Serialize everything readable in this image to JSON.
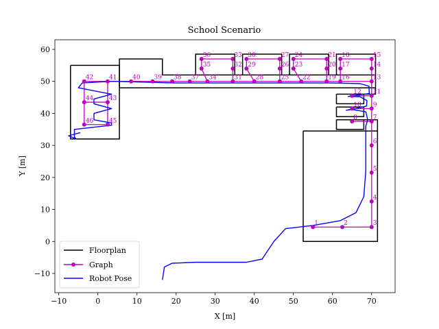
{
  "chart_data": {
    "type": "line",
    "title": "School Scenario",
    "xlabel": "X [m]",
    "ylabel": "Y [m]",
    "xlim": [
      -11,
      76
    ],
    "ylim": [
      -16,
      63
    ],
    "xticks": [
      -10,
      0,
      10,
      20,
      30,
      40,
      50,
      60,
      70
    ],
    "yticks": [
      -10,
      0,
      10,
      20,
      30,
      40,
      50,
      60
    ],
    "xtick_labels": [
      "−10",
      "0",
      "10",
      "20",
      "30",
      "40",
      "50",
      "60",
      "70"
    ],
    "ytick_labels": [
      "−10",
      "0",
      "10",
      "20",
      "30",
      "40",
      "50",
      "60"
    ],
    "grid": false,
    "legend_position": "lower-left",
    "colors": {
      "floorplan": "#000000",
      "graph": "#bf00bf",
      "robot": "#0000ff"
    },
    "legend": [
      "Floorplan",
      "Graph",
      "Robot Pose"
    ],
    "floorplan": [
      [
        [
          5.5,
          48
        ],
        [
          5.5,
          57
        ],
        [
          16.5,
          57
        ],
        [
          16.5,
          52
        ],
        [
          71,
          52
        ],
        [
          71,
          48
        ],
        [
          5.5,
          48
        ]
      ],
      [
        [
          -7,
          55
        ],
        [
          5.5,
          55
        ],
        [
          5.5,
          32
        ],
        [
          -7,
          32
        ],
        [
          -7,
          55
        ]
      ],
      [
        [
          25,
          52
        ],
        [
          25,
          58.5
        ],
        [
          35,
          58.5
        ],
        [
          35,
          52
        ]
      ],
      [
        [
          37,
          52
        ],
        [
          37,
          58.5
        ],
        [
          47,
          58.5
        ],
        [
          47,
          52
        ]
      ],
      [
        [
          49,
          52
        ],
        [
          49,
          58.5
        ],
        [
          59,
          58.5
        ],
        [
          59,
          52
        ]
      ],
      [
        [
          61,
          52
        ],
        [
          61,
          58.5
        ],
        [
          71,
          58.5
        ],
        [
          71,
          52
        ]
      ],
      [
        [
          61,
          46
        ],
        [
          68,
          46
        ],
        [
          68,
          43
        ],
        [
          61,
          43
        ],
        [
          61,
          46
        ]
      ],
      [
        [
          61,
          42
        ],
        [
          68,
          42
        ],
        [
          68,
          39
        ],
        [
          61,
          39
        ],
        [
          61,
          42
        ]
      ],
      [
        [
          61,
          38
        ],
        [
          68,
          38
        ],
        [
          68,
          35
        ],
        [
          61,
          35
        ],
        [
          61,
          38
        ]
      ],
      [
        [
          52.5,
          34.5
        ],
        [
          71.5,
          34.5
        ],
        [
          71.5,
          0
        ],
        [
          52.5,
          0
        ],
        [
          52.5,
          34.5
        ]
      ],
      [
        [
          68,
          38
        ],
        [
          71.5,
          38
        ],
        [
          71.5,
          34.5
        ]
      ],
      [
        [
          68,
          46
        ],
        [
          71,
          46
        ],
        [
          71,
          48
        ]
      ]
    ],
    "graph_nodes": [
      {
        "id": "1",
        "x": 55,
        "y": 4.5
      },
      {
        "id": "2",
        "x": 62.5,
        "y": 4.5
      },
      {
        "id": "3",
        "x": 70,
        "y": 4.5
      },
      {
        "id": "4",
        "x": 70,
        "y": 12.5
      },
      {
        "id": "5",
        "x": 70,
        "y": 21.5
      },
      {
        "id": "6",
        "x": 70,
        "y": 30
      },
      {
        "id": "7",
        "x": 70,
        "y": 37.5
      },
      {
        "id": "8",
        "x": 65,
        "y": 37.5
      },
      {
        "id": "9",
        "x": 70,
        "y": 41.5
      },
      {
        "id": "10",
        "x": 65,
        "y": 41.5
      },
      {
        "id": "11",
        "x": 70,
        "y": 45.5
      },
      {
        "id": "12",
        "x": 65,
        "y": 45.5
      },
      {
        "id": "13",
        "x": 70,
        "y": 50
      },
      {
        "id": "14",
        "x": 70,
        "y": 54
      },
      {
        "id": "15",
        "x": 70,
        "y": 57
      },
      {
        "id": "16",
        "x": 62,
        "y": 50
      },
      {
        "id": "17",
        "x": 62,
        "y": 54
      },
      {
        "id": "18",
        "x": 62,
        "y": 57
      },
      {
        "id": "19",
        "x": 58.5,
        "y": 50
      },
      {
        "id": "20",
        "x": 58.5,
        "y": 54
      },
      {
        "id": "21",
        "x": 58.5,
        "y": 57
      },
      {
        "id": "22",
        "x": 52,
        "y": 50
      },
      {
        "id": "23",
        "x": 50,
        "y": 54
      },
      {
        "id": "24",
        "x": 50,
        "y": 57
      },
      {
        "id": "25",
        "x": 46.5,
        "y": 50
      },
      {
        "id": "26",
        "x": 46.5,
        "y": 54
      },
      {
        "id": "27",
        "x": 46.5,
        "y": 57
      },
      {
        "id": "28",
        "x": 40,
        "y": 50
      },
      {
        "id": "29",
        "x": 38,
        "y": 54
      },
      {
        "id": "30",
        "x": 38,
        "y": 57
      },
      {
        "id": "31",
        "x": 34.5,
        "y": 50
      },
      {
        "id": "32",
        "x": 34.5,
        "y": 54
      },
      {
        "id": "33",
        "x": 34.5,
        "y": 57
      },
      {
        "id": "34",
        "x": 28,
        "y": 50
      },
      {
        "id": "35",
        "x": 26.5,
        "y": 54
      },
      {
        "id": "36",
        "x": 26.5,
        "y": 57
      },
      {
        "id": "37",
        "x": 23.5,
        "y": 50
      },
      {
        "id": "38",
        "x": 19,
        "y": 50
      },
      {
        "id": "39",
        "x": 14,
        "y": 50
      },
      {
        "id": "40",
        "x": 8.5,
        "y": 50
      },
      {
        "id": "41",
        "x": 2.5,
        "y": 50
      },
      {
        "id": "42",
        "x": -3.5,
        "y": 50
      },
      {
        "id": "43",
        "x": 2.5,
        "y": 43.5
      },
      {
        "id": "44",
        "x": -3.5,
        "y": 43.5
      },
      {
        "id": "45",
        "x": 2.5,
        "y": 36.5
      },
      {
        "id": "46",
        "x": -3.5,
        "y": 36.5
      }
    ],
    "graph_edges": [
      [
        "1",
        "2"
      ],
      [
        "2",
        "3"
      ],
      [
        "3",
        "4"
      ],
      [
        "4",
        "5"
      ],
      [
        "5",
        "6"
      ],
      [
        "6",
        "7"
      ],
      [
        "7",
        "8"
      ],
      [
        "7",
        "9"
      ],
      [
        "9",
        "10"
      ],
      [
        "9",
        "11"
      ],
      [
        "11",
        "12"
      ],
      [
        "11",
        "13"
      ],
      [
        "13",
        "14"
      ],
      [
        "14",
        "15"
      ],
      [
        "15",
        "18"
      ],
      [
        "18",
        "17"
      ],
      [
        "17",
        "16"
      ],
      [
        "13",
        "16"
      ],
      [
        "16",
        "19"
      ],
      [
        "19",
        "20"
      ],
      [
        "20",
        "21"
      ],
      [
        "21",
        "24"
      ],
      [
        "24",
        "23"
      ],
      [
        "23",
        "22"
      ],
      [
        "19",
        "22"
      ],
      [
        "22",
        "25"
      ],
      [
        "25",
        "26"
      ],
      [
        "26",
        "27"
      ],
      [
        "27",
        "30"
      ],
      [
        "30",
        "29"
      ],
      [
        "29",
        "28"
      ],
      [
        "25",
        "28"
      ],
      [
        "28",
        "31"
      ],
      [
        "31",
        "32"
      ],
      [
        "32",
        "33"
      ],
      [
        "33",
        "36"
      ],
      [
        "36",
        "35"
      ],
      [
        "35",
        "34"
      ],
      [
        "31",
        "34"
      ],
      [
        "34",
        "37"
      ],
      [
        "37",
        "38"
      ],
      [
        "38",
        "39"
      ],
      [
        "39",
        "40"
      ],
      [
        "40",
        "41"
      ],
      [
        "41",
        "42"
      ],
      [
        "42",
        "44"
      ],
      [
        "44",
        "46"
      ],
      [
        "46",
        "45"
      ],
      [
        "45",
        "43"
      ],
      [
        "43",
        "41"
      ],
      [
        "43",
        "44"
      ]
    ],
    "robot_pose": [
      [
        16.5,
        -12
      ],
      [
        17,
        -8
      ],
      [
        19,
        -6.8
      ],
      [
        25,
        -6.5
      ],
      [
        38,
        -6.5
      ],
      [
        42,
        -5.5
      ],
      [
        45,
        0
      ],
      [
        48,
        4
      ],
      [
        55,
        5
      ],
      [
        62,
        6.5
      ],
      [
        66,
        9
      ],
      [
        68,
        14
      ],
      [
        68.5,
        22
      ],
      [
        68.5,
        30
      ],
      [
        68.5,
        36
      ],
      [
        69,
        38
      ],
      [
        68.5,
        40.5
      ],
      [
        65,
        41.2
      ],
      [
        63.5,
        41
      ],
      [
        66,
        41.5
      ],
      [
        68.7,
        42.3
      ],
      [
        68.8,
        44
      ],
      [
        67,
        45.2
      ],
      [
        64,
        45.3
      ],
      [
        67,
        45.8
      ],
      [
        69.4,
        46.2
      ],
      [
        69.3,
        48.5
      ],
      [
        67,
        49.3
      ],
      [
        60,
        49.5
      ],
      [
        46,
        49.5
      ],
      [
        35,
        49.5
      ],
      [
        20,
        49.5
      ],
      [
        4,
        50
      ],
      [
        0,
        49.8
      ],
      [
        -4,
        49.5
      ],
      [
        -5,
        48
      ],
      [
        3.5,
        46
      ],
      [
        -1,
        44.5
      ],
      [
        -1,
        43
      ],
      [
        3.5,
        41.5
      ],
      [
        -1,
        40
      ],
      [
        -1,
        38
      ],
      [
        3.5,
        37
      ],
      [
        3.5,
        36.3
      ],
      [
        -6,
        35
      ],
      [
        -6,
        32.5
      ],
      [
        -5.5,
        32
      ],
      [
        -7.5,
        33
      ],
      [
        -4.5,
        34
      ]
    ]
  }
}
